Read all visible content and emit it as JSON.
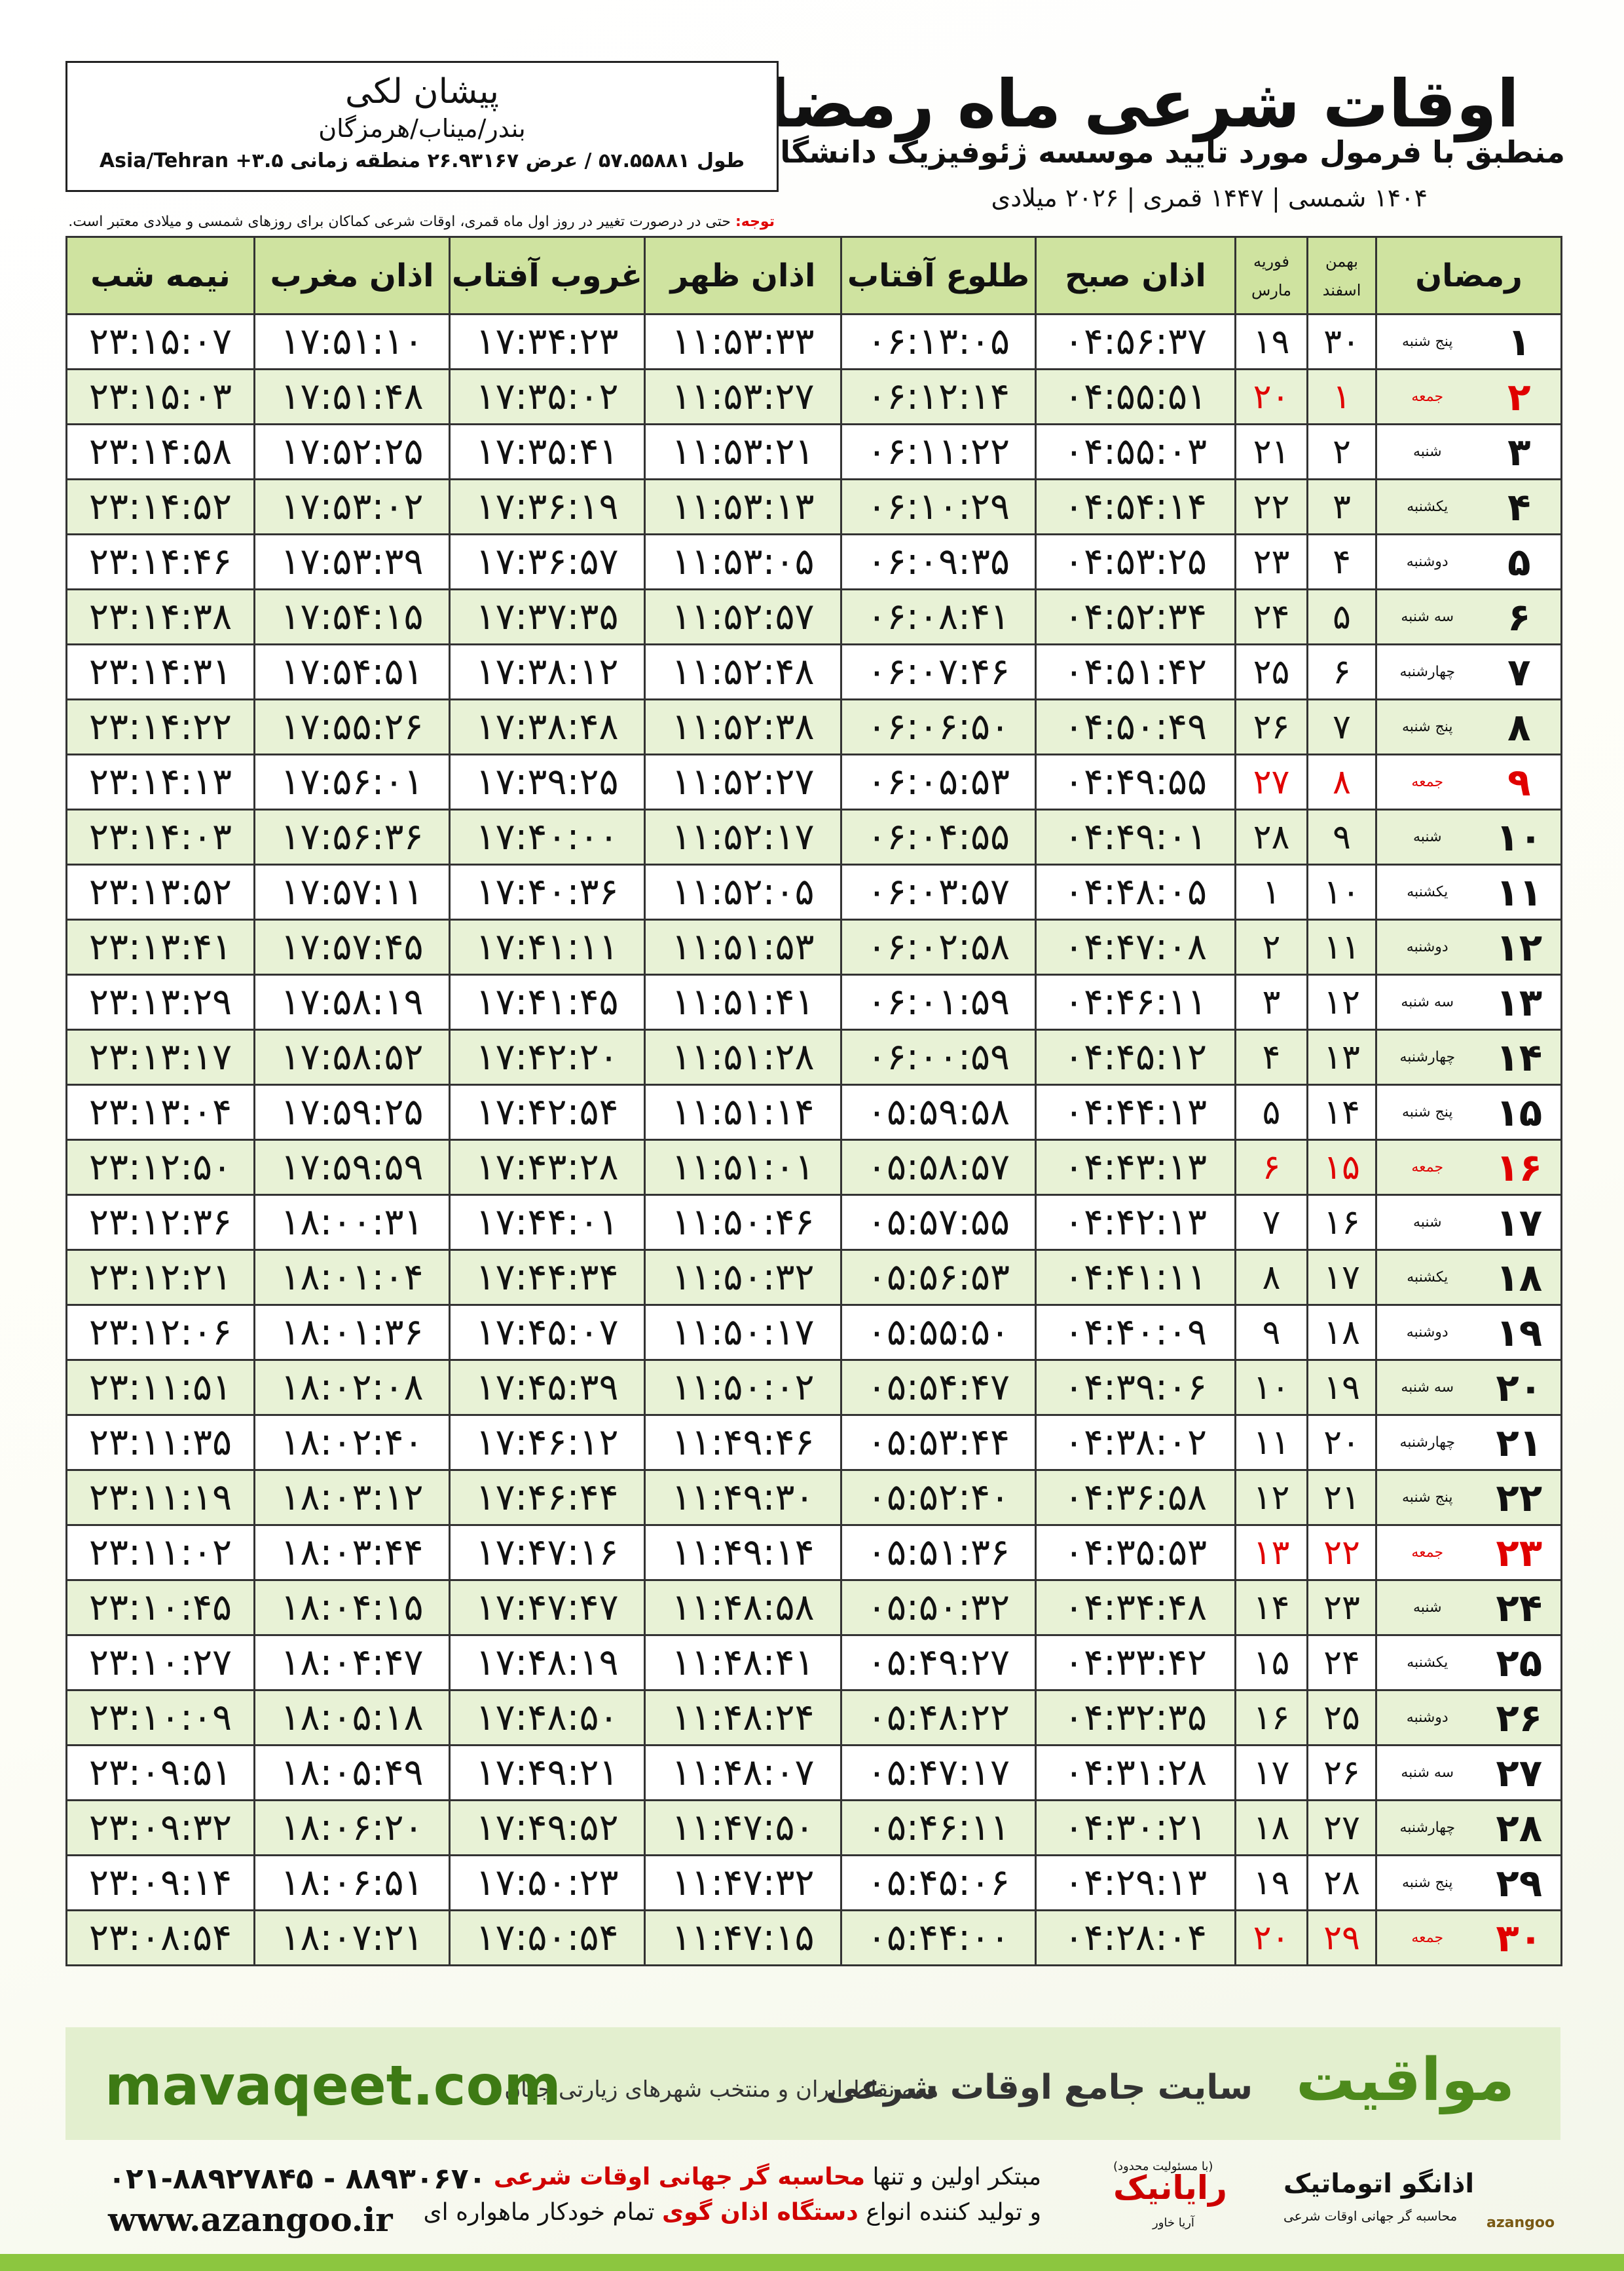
{
  "header": {
    "title": "اوقات شرعی ماه رمضان",
    "subtitle": "منطبق با فرمول مورد تایید موسسه ژئوفیزیک دانشگاه تهران",
    "dates": "۱۴۰۴ شمسی | ۱۴۴۷ قمری | ۲۰۲۶ میلادی"
  },
  "location": {
    "city": "پیشان لکی",
    "region": "بندر/میناب/هرمزگان",
    "coords": "طول ۵۷.۵۵۸۸۱ / عرض ۲۶.۹۳۱۶۷ منطقه زمانی ۳.۵+ Asia/Tehran"
  },
  "note": {
    "label": "توجه:",
    "text": "حتی در درصورت تغییر در روز اول ماه قمری، اوقات شرعی کماکان برای روزهای شمسی و میلادی معتبر است."
  },
  "table": {
    "columns": [
      "رمضان",
      [
        "بهمن",
        "اسفند"
      ],
      [
        "فوریه",
        "مارس"
      ],
      "اذان صبح",
      "طلوع آفتاب",
      "اذان ظهر",
      "غروب آفتاب",
      "اذان مغرب",
      "نیمه شب"
    ],
    "rows": [
      [
        "۱",
        "پنج شنبه",
        "۳۰",
        "۱۹",
        "۰۴:۵۶:۳۷",
        "۰۶:۱۳:۰۵",
        "۱۱:۵۳:۳۳",
        "۱۷:۳۴:۲۳",
        "۱۷:۵۱:۱۰",
        "۲۳:۱۵:۰۷"
      ],
      [
        "۲",
        "جمعه",
        "۱",
        "۲۰",
        "۰۴:۵۵:۵۱",
        "۰۶:۱۲:۱۴",
        "۱۱:۵۳:۲۷",
        "۱۷:۳۵:۰۲",
        "۱۷:۵۱:۴۸",
        "۲۳:۱۵:۰۳"
      ],
      [
        "۳",
        "شنبه",
        "۲",
        "۲۱",
        "۰۴:۵۵:۰۳",
        "۰۶:۱۱:۲۲",
        "۱۱:۵۳:۲۱",
        "۱۷:۳۵:۴۱",
        "۱۷:۵۲:۲۵",
        "۲۳:۱۴:۵۸"
      ],
      [
        "۴",
        "یکشنبه",
        "۳",
        "۲۲",
        "۰۴:۵۴:۱۴",
        "۰۶:۱۰:۲۹",
        "۱۱:۵۳:۱۳",
        "۱۷:۳۶:۱۹",
        "۱۷:۵۳:۰۲",
        "۲۳:۱۴:۵۲"
      ],
      [
        "۵",
        "دوشنبه",
        "۴",
        "۲۳",
        "۰۴:۵۳:۲۵",
        "۰۶:۰۹:۳۵",
        "۱۱:۵۳:۰۵",
        "۱۷:۳۶:۵۷",
        "۱۷:۵۳:۳۹",
        "۲۳:۱۴:۴۶"
      ],
      [
        "۶",
        "سه شنبه",
        "۵",
        "۲۴",
        "۰۴:۵۲:۳۴",
        "۰۶:۰۸:۴۱",
        "۱۱:۵۲:۵۷",
        "۱۷:۳۷:۳۵",
        "۱۷:۵۴:۱۵",
        "۲۳:۱۴:۳۸"
      ],
      [
        "۷",
        "چهارشنبه",
        "۶",
        "۲۵",
        "۰۴:۵۱:۴۲",
        "۰۶:۰۷:۴۶",
        "۱۱:۵۲:۴۸",
        "۱۷:۳۸:۱۲",
        "۱۷:۵۴:۵۱",
        "۲۳:۱۴:۳۱"
      ],
      [
        "۸",
        "پنج شنبه",
        "۷",
        "۲۶",
        "۰۴:۵۰:۴۹",
        "۰۶:۰۶:۵۰",
        "۱۱:۵۲:۳۸",
        "۱۷:۳۸:۴۸",
        "۱۷:۵۵:۲۶",
        "۲۳:۱۴:۲۲"
      ],
      [
        "۹",
        "جمعه",
        "۸",
        "۲۷",
        "۰۴:۴۹:۵۵",
        "۰۶:۰۵:۵۳",
        "۱۱:۵۲:۲۷",
        "۱۷:۳۹:۲۵",
        "۱۷:۵۶:۰۱",
        "۲۳:۱۴:۱۳"
      ],
      [
        "۱۰",
        "شنبه",
        "۹",
        "۲۸",
        "۰۴:۴۹:۰۱",
        "۰۶:۰۴:۵۵",
        "۱۱:۵۲:۱۷",
        "۱۷:۴۰:۰۰",
        "۱۷:۵۶:۳۶",
        "۲۳:۱۴:۰۳"
      ],
      [
        "۱۱",
        "یکشنبه",
        "۱۰",
        "۱",
        "۰۴:۴۸:۰۵",
        "۰۶:۰۳:۵۷",
        "۱۱:۵۲:۰۵",
        "۱۷:۴۰:۳۶",
        "۱۷:۵۷:۱۱",
        "۲۳:۱۳:۵۲"
      ],
      [
        "۱۲",
        "دوشنبه",
        "۱۱",
        "۲",
        "۰۴:۴۷:۰۸",
        "۰۶:۰۲:۵۸",
        "۱۱:۵۱:۵۳",
        "۱۷:۴۱:۱۱",
        "۱۷:۵۷:۴۵",
        "۲۳:۱۳:۴۱"
      ],
      [
        "۱۳",
        "سه شنبه",
        "۱۲",
        "۳",
        "۰۴:۴۶:۱۱",
        "۰۶:۰۱:۵۹",
        "۱۱:۵۱:۴۱",
        "۱۷:۴۱:۴۵",
        "۱۷:۵۸:۱۹",
        "۲۳:۱۳:۲۹"
      ],
      [
        "۱۴",
        "چهارشنبه",
        "۱۳",
        "۴",
        "۰۴:۴۵:۱۲",
        "۰۶:۰۰:۵۹",
        "۱۱:۵۱:۲۸",
        "۱۷:۴۲:۲۰",
        "۱۷:۵۸:۵۲",
        "۲۳:۱۳:۱۷"
      ],
      [
        "۱۵",
        "پنج شنبه",
        "۱۴",
        "۵",
        "۰۴:۴۴:۱۳",
        "۰۵:۵۹:۵۸",
        "۱۱:۵۱:۱۴",
        "۱۷:۴۲:۵۴",
        "۱۷:۵۹:۲۵",
        "۲۳:۱۳:۰۴"
      ],
      [
        "۱۶",
        "جمعه",
        "۱۵",
        "۶",
        "۰۴:۴۳:۱۳",
        "۰۵:۵۸:۵۷",
        "۱۱:۵۱:۰۱",
        "۱۷:۴۳:۲۸",
        "۱۷:۵۹:۵۹",
        "۲۳:۱۲:۵۰"
      ],
      [
        "۱۷",
        "شنبه",
        "۱۶",
        "۷",
        "۰۴:۴۲:۱۳",
        "۰۵:۵۷:۵۵",
        "۱۱:۵۰:۴۶",
        "۱۷:۴۴:۰۱",
        "۱۸:۰۰:۳۱",
        "۲۳:۱۲:۳۶"
      ],
      [
        "۱۸",
        "یکشنبه",
        "۱۷",
        "۸",
        "۰۴:۴۱:۱۱",
        "۰۵:۵۶:۵۳",
        "۱۱:۵۰:۳۲",
        "۱۷:۴۴:۳۴",
        "۱۸:۰۱:۰۴",
        "۲۳:۱۲:۲۱"
      ],
      [
        "۱۹",
        "دوشنبه",
        "۱۸",
        "۹",
        "۰۴:۴۰:۰۹",
        "۰۵:۵۵:۵۰",
        "۱۱:۵۰:۱۷",
        "۱۷:۴۵:۰۷",
        "۱۸:۰۱:۳۶",
        "۲۳:۱۲:۰۶"
      ],
      [
        "۲۰",
        "سه شنبه",
        "۱۹",
        "۱۰",
        "۰۴:۳۹:۰۶",
        "۰۵:۵۴:۴۷",
        "۱۱:۵۰:۰۲",
        "۱۷:۴۵:۳۹",
        "۱۸:۰۲:۰۸",
        "۲۳:۱۱:۵۱"
      ],
      [
        "۲۱",
        "چهارشنبه",
        "۲۰",
        "۱۱",
        "۰۴:۳۸:۰۲",
        "۰۵:۵۳:۴۴",
        "۱۱:۴۹:۴۶",
        "۱۷:۴۶:۱۲",
        "۱۸:۰۲:۴۰",
        "۲۳:۱۱:۳۵"
      ],
      [
        "۲۲",
        "پنج شنبه",
        "۲۱",
        "۱۲",
        "۰۴:۳۶:۵۸",
        "۰۵:۵۲:۴۰",
        "۱۱:۴۹:۳۰",
        "۱۷:۴۶:۴۴",
        "۱۸:۰۳:۱۲",
        "۲۳:۱۱:۱۹"
      ],
      [
        "۲۳",
        "جمعه",
        "۲۲",
        "۱۳",
        "۰۴:۳۵:۵۳",
        "۰۵:۵۱:۳۶",
        "۱۱:۴۹:۱۴",
        "۱۷:۴۷:۱۶",
        "۱۸:۰۳:۴۴",
        "۲۳:۱۱:۰۲"
      ],
      [
        "۲۴",
        "شنبه",
        "۲۳",
        "۱۴",
        "۰۴:۳۴:۴۸",
        "۰۵:۵۰:۳۲",
        "۱۱:۴۸:۵۸",
        "۱۷:۴۷:۴۷",
        "۱۸:۰۴:۱۵",
        "۲۳:۱۰:۴۵"
      ],
      [
        "۲۵",
        "یکشنبه",
        "۲۴",
        "۱۵",
        "۰۴:۳۳:۴۲",
        "۰۵:۴۹:۲۷",
        "۱۱:۴۸:۴۱",
        "۱۷:۴۸:۱۹",
        "۱۸:۰۴:۴۷",
        "۲۳:۱۰:۲۷"
      ],
      [
        "۲۶",
        "دوشنبه",
        "۲۵",
        "۱۶",
        "۰۴:۳۲:۳۵",
        "۰۵:۴۸:۲۲",
        "۱۱:۴۸:۲۴",
        "۱۷:۴۸:۵۰",
        "۱۸:۰۵:۱۸",
        "۲۳:۱۰:۰۹"
      ],
      [
        "۲۷",
        "سه شنبه",
        "۲۶",
        "۱۷",
        "۰۴:۳۱:۲۸",
        "۰۵:۴۷:۱۷",
        "۱۱:۴۸:۰۷",
        "۱۷:۴۹:۲۱",
        "۱۸:۰۵:۴۹",
        "۲۳:۰۹:۵۱"
      ],
      [
        "۲۸",
        "چهارشنبه",
        "۲۷",
        "۱۸",
        "۰۴:۳۰:۲۱",
        "۰۵:۴۶:۱۱",
        "۱۱:۴۷:۵۰",
        "۱۷:۴۹:۵۲",
        "۱۸:۰۶:۲۰",
        "۲۳:۰۹:۳۲"
      ],
      [
        "۲۹",
        "پنج شنبه",
        "۲۸",
        "۱۹",
        "۰۴:۲۹:۱۳",
        "۰۵:۴۵:۰۶",
        "۱۱:۴۷:۳۲",
        "۱۷:۵۰:۲۳",
        "۱۸:۰۶:۵۱",
        "۲۳:۰۹:۱۴"
      ],
      [
        "۳۰",
        "جمعه",
        "۲۹",
        "۲۰",
        "۰۴:۲۸:۰۴",
        "۰۵:۴۴:۰۰",
        "۱۱:۴۷:۱۵",
        "۱۷:۵۰:۵۴",
        "۱۸:۰۷:۲۱",
        "۲۳:۰۸:۵۴"
      ]
    ]
  },
  "banner": {
    "brand": "مواقیت",
    "tagline": "سایت جامع اوقات شرعی",
    "coverage": "همه نقاط ایران و منتخب شهرهای زیارتی جهان",
    "site": "mavaqeet.com"
  },
  "footer": {
    "phones": "۰۲۱-۸۸۹۲۷۸۴۵ - ۸۸۹۳۰۶۷۰",
    "web": "www.azangoo.ir",
    "line1": [
      "مبتکر اولین و تنها",
      "محاسبه گر جهانی اوقات شرعی"
    ],
    "line2": [
      "و تولید کننده انواع",
      "دستگاه اذان گوی",
      "تمام خودکار ماهواره ای"
    ],
    "logo1": "رایانیک",
    "logo1_sub": "آریا خاور",
    "logo1_note": "(با مسئولیت محدود)",
    "logo2": "اذانگو اتوماتیک",
    "logo2_sub": "محاسبه گر جهانی اوقات شرعی",
    "logo3": "azangoo"
  }
}
